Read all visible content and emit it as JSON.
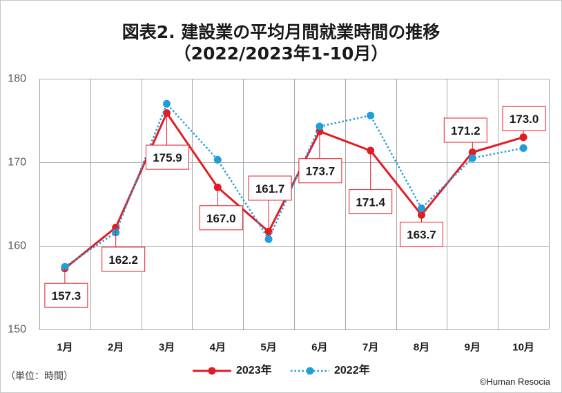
{
  "chart_data": {
    "type": "line",
    "title": "図表2. 建設業の平均月間就業時間の推移",
    "subtitle": "（2022/2023年1-10月）",
    "unit_note": "（単位：時間）",
    "credit": "©Human Resocia",
    "categories": [
      "1月",
      "2月",
      "3月",
      "4月",
      "5月",
      "6月",
      "7月",
      "8月",
      "9月",
      "10月"
    ],
    "ylim": [
      150,
      180
    ],
    "yticks": [
      150,
      160,
      170,
      180
    ],
    "grid": true,
    "legend_position": "bottom",
    "series": [
      {
        "name": "2023年",
        "color": "#e31b23",
        "values": [
          157.3,
          162.2,
          175.9,
          167.0,
          161.7,
          173.7,
          171.4,
          163.7,
          171.2,
          173.0
        ],
        "data_labels": [
          "157.3",
          "162.2",
          "175.9",
          "167.0",
          "161.7",
          "173.7",
          "171.4",
          "163.7",
          "171.2",
          "173.0"
        ]
      },
      {
        "name": "2022年",
        "color": "#1f9fd9",
        "values": [
          157.5,
          161.6,
          177.0,
          170.3,
          160.8,
          174.3,
          175.6,
          164.5,
          170.5,
          171.7
        ]
      }
    ]
  }
}
